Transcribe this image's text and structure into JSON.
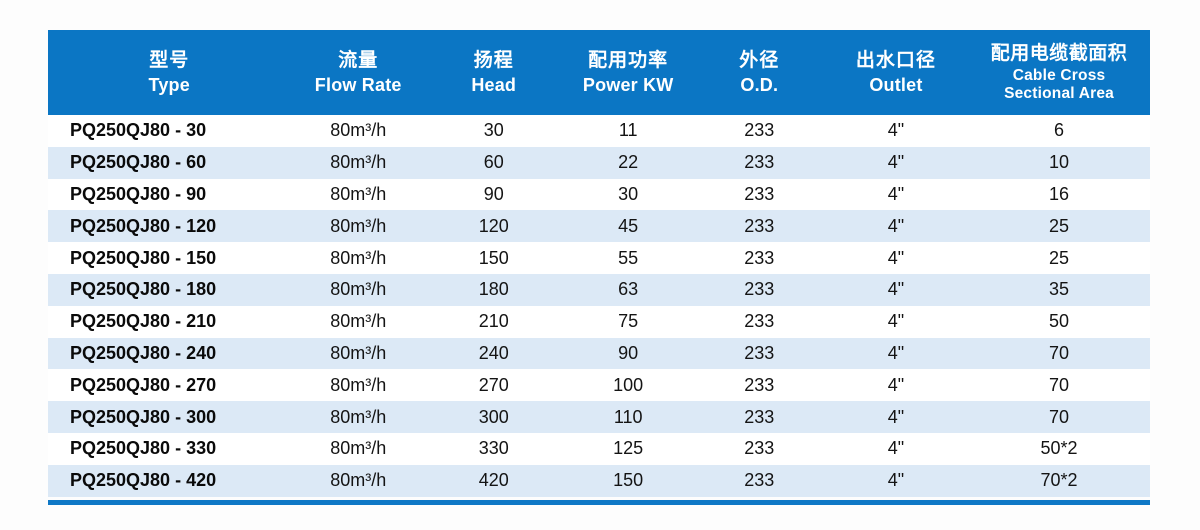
{
  "colors": {
    "header_bg": "#0b76c4",
    "stripe_bg": "#dce9f6",
    "bottom_bar": "#0f78c6"
  },
  "table": {
    "columns": [
      {
        "zh": "型号",
        "en_lines": [
          "Type"
        ]
      },
      {
        "zh": "流量",
        "en_lines": [
          "Flow Rate"
        ]
      },
      {
        "zh": "扬程",
        "en_lines": [
          "Head"
        ]
      },
      {
        "zh": "配用功率",
        "en_lines": [
          "Power KW"
        ]
      },
      {
        "zh": "外径",
        "en_lines": [
          "O.D."
        ]
      },
      {
        "zh": "出水口径",
        "en_lines": [
          "Outlet"
        ]
      },
      {
        "zh": "配用电缆截面积",
        "en_lines": [
          "Cable Cross",
          "Sectional Area"
        ]
      }
    ],
    "rows": [
      [
        "PQ250QJ80 - 30",
        "80m³/h",
        "30",
        "11",
        "233",
        "4\"",
        "6"
      ],
      [
        "PQ250QJ80 - 60",
        "80m³/h",
        "60",
        "22",
        "233",
        "4\"",
        "10"
      ],
      [
        "PQ250QJ80 - 90",
        "80m³/h",
        "90",
        "30",
        "233",
        "4\"",
        "16"
      ],
      [
        "PQ250QJ80 - 120",
        "80m³/h",
        "120",
        "45",
        "233",
        "4\"",
        "25"
      ],
      [
        "PQ250QJ80 - 150",
        "80m³/h",
        "150",
        "55",
        "233",
        "4\"",
        "25"
      ],
      [
        "PQ250QJ80 - 180",
        "80m³/h",
        "180",
        "63",
        "233",
        "4\"",
        "35"
      ],
      [
        "PQ250QJ80 - 210",
        "80m³/h",
        "210",
        "75",
        "233",
        "4\"",
        "50"
      ],
      [
        "PQ250QJ80 - 240",
        "80m³/h",
        "240",
        "90",
        "233",
        "4\"",
        "70"
      ],
      [
        "PQ250QJ80 - 270",
        "80m³/h",
        "270",
        "100",
        "233",
        "4\"",
        "70"
      ],
      [
        "PQ250QJ80 - 300",
        "80m³/h",
        "300",
        "110",
        "233",
        "4\"",
        "70"
      ],
      [
        "PQ250QJ80 - 330",
        "80m³/h",
        "330",
        "125",
        "233",
        "4\"",
        "50*2"
      ],
      [
        "PQ250QJ80 - 420",
        "80m³/h",
        "420",
        "150",
        "233",
        "4\"",
        "70*2"
      ]
    ],
    "column_keys": [
      "type",
      "flow-rate",
      "head",
      "power-kw",
      "od",
      "outlet",
      "cable-cross-sectional-area"
    ]
  }
}
